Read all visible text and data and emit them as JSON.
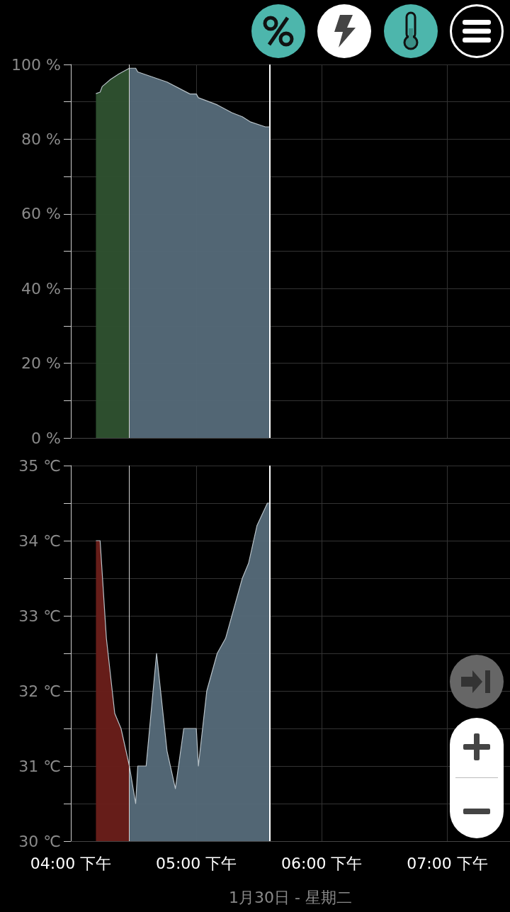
{
  "chart_data": [
    {
      "type": "area",
      "xlim": [
        "--01-30T16:00",
        "--01-30T19:30"
      ],
      "xticks": [
        {
          "value": "--01-30T16:00",
          "label": null
        },
        {
          "value": "--01-30T17:00",
          "label": null
        },
        {
          "value": "--01-30T18:00",
          "label": null
        },
        {
          "value": "--01-30T19:00",
          "label": null
        }
      ],
      "ylim": [
        0,
        100
      ],
      "yticks": [
        {
          "value": 0,
          "label": "0 %"
        },
        {
          "value": 10,
          "label": null
        },
        {
          "value": 20,
          "label": "20 %"
        },
        {
          "value": 30,
          "label": null
        },
        {
          "value": 40,
          "label": "40 %"
        },
        {
          "value": 50,
          "label": null
        },
        {
          "value": 60,
          "label": "60 %"
        },
        {
          "value": 70,
          "label": null
        },
        {
          "value": 80,
          "label": "80 %"
        },
        {
          "value": 90,
          "label": null
        },
        {
          "value": 100,
          "label": "100 %"
        }
      ],
      "grid": true,
      "tick_labels": "y",
      "marker": "none",
      "line_style": "solid",
      "ref_lines": [
        {
          "axis": "x",
          "value": "--01-30T16:28",
          "label": null,
          "color": "#d0d0d0"
        },
        {
          "axis": "x",
          "value": "--01-30T17:35",
          "label": null,
          "color": "#ffffff"
        }
      ],
      "series": [
        {
          "color": "#2f5230",
          "x": [
            "--01-30T16:12",
            "--01-30T16:14",
            "--01-30T16:15",
            "--01-30T16:19",
            "--01-30T16:23",
            "--01-30T16:28"
          ],
          "values": [
            92.2,
            92.6,
            94.1,
            96,
            97.5,
            99
          ]
        },
        {
          "color": "#566b7a",
          "x": [
            "--01-30T16:28",
            "--01-30T16:31",
            "--01-30T16:32",
            "--01-30T16:46",
            "--01-30T16:57",
            "--01-30T17:00",
            "--01-30T17:01",
            "--01-30T17:10",
            "--01-30T17:17",
            "--01-30T17:22",
            "--01-30T17:26",
            "--01-30T17:33",
            "--01-30T17:35"
          ],
          "values": [
            99,
            99,
            98,
            95.3,
            92.1,
            92.1,
            91.1,
            89.2,
            87.1,
            86,
            84.6,
            83.3,
            83.3
          ]
        }
      ]
    },
    {
      "type": "area",
      "xlabel": "1月30日 - 星期二",
      "xlim": [
        "--01-30T16:00",
        "--01-30T19:30"
      ],
      "xticks": [
        {
          "value": "--01-30T16:00",
          "label": "04:00 下午"
        },
        {
          "value": "--01-30T17:00",
          "label": "05:00 下午"
        },
        {
          "value": "--01-30T18:00",
          "label": "06:00 下午"
        },
        {
          "value": "--01-30T19:00",
          "label": "07:00 下午"
        }
      ],
      "ylim": [
        30,
        35
      ],
      "yticks": [
        {
          "value": 30,
          "label": "30 ℃"
        },
        {
          "value": 30.5,
          "label": null
        },
        {
          "value": 31,
          "label": "31 ℃"
        },
        {
          "value": 31.5,
          "label": null
        },
        {
          "value": 32,
          "label": "32 ℃"
        },
        {
          "value": 32.5,
          "label": null
        },
        {
          "value": 33,
          "label": "33 ℃"
        },
        {
          "value": 33.5,
          "label": null
        },
        {
          "value": 34,
          "label": "34 ℃"
        },
        {
          "value": 34.5,
          "label": null
        },
        {
          "value": 35,
          "label": "35 ℃"
        }
      ],
      "grid": true,
      "marker": "none",
      "line_style": "solid",
      "ref_lines": [
        {
          "axis": "x",
          "value": "--01-30T16:28",
          "label": null,
          "color": "#d0d0d0"
        },
        {
          "axis": "x",
          "value": "--01-30T17:35",
          "label": null,
          "color": "#ffffff"
        }
      ],
      "series": [
        {
          "color": "#6b1f1a",
          "x": [
            "--01-30T16:12",
            "--01-30T16:14",
            "--01-30T16:17",
            "--01-30T16:21",
            "--01-30T16:24",
            "--01-30T16:28"
          ],
          "values": [
            34,
            34,
            32.7,
            31.7,
            31.5,
            31
          ]
        },
        {
          "color": "#566b7a",
          "x": [
            "--01-30T16:28",
            "--01-30T16:31",
            "--01-30T16:32",
            "--01-30T16:36",
            "--01-30T16:41",
            "--01-30T16:46",
            "--01-30T16:50",
            "--01-30T16:54",
            "--01-30T17:00",
            "--01-30T17:01",
            "--01-30T17:05",
            "--01-30T17:10",
            "--01-30T17:14",
            "--01-30T17:22",
            "--01-30T17:25",
            "--01-30T17:29",
            "--01-30T17:34",
            "--01-30T17:35"
          ],
          "values": [
            31,
            30.5,
            31,
            31,
            32.5,
            31.2,
            30.7,
            31.5,
            31.5,
            31,
            32,
            32.5,
            32.7,
            33.5,
            33.7,
            34.2,
            34.5,
            34.5
          ]
        }
      ]
    }
  ]
}
